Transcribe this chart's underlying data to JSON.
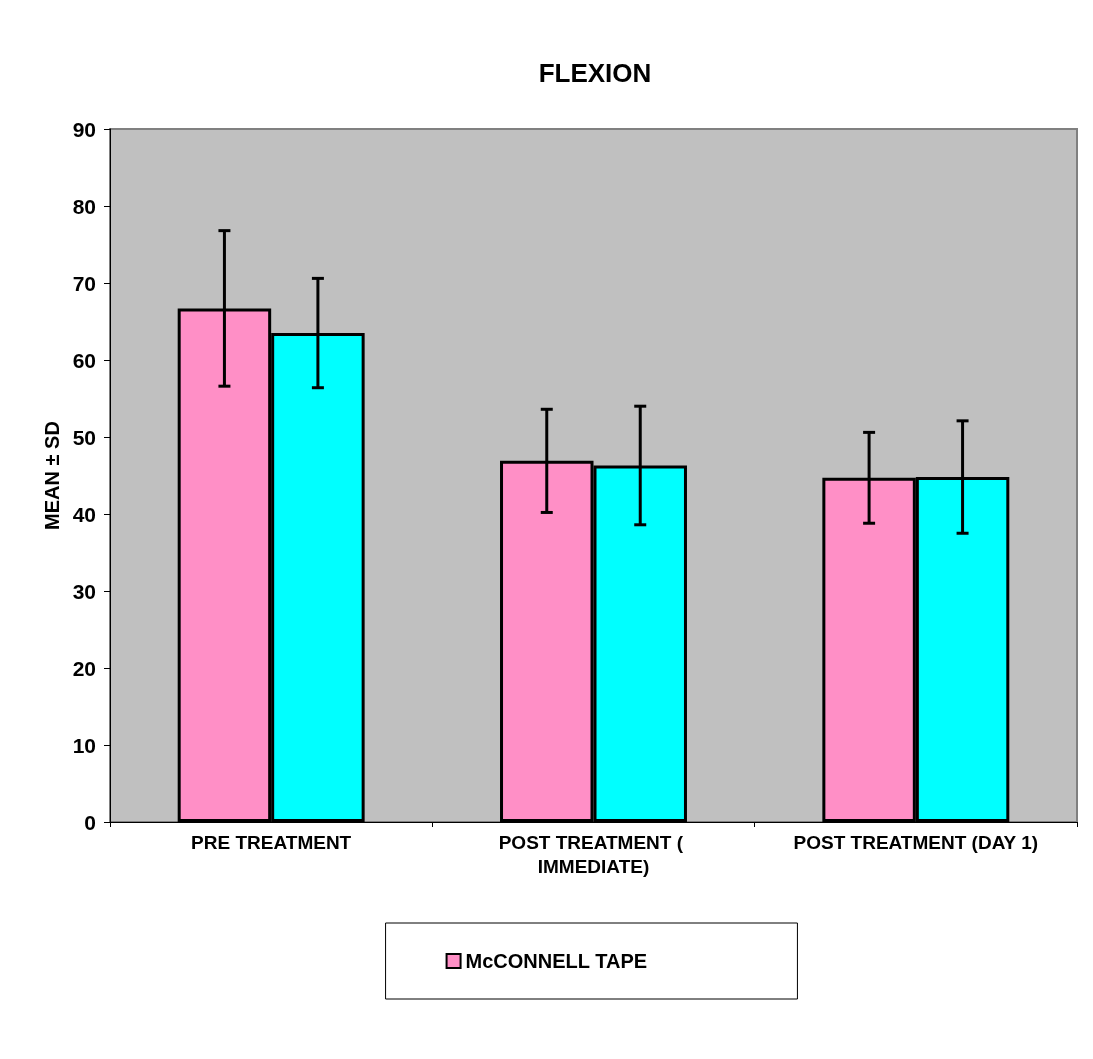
{
  "chart_data": {
    "type": "bar",
    "title": "FLEXION",
    "ylabel": "MEAN ± SD",
    "categories": [
      "PRE TREATMENT",
      "POST TREATMENT ( IMMEDIATE)",
      "POST TREATMENT (DAY 1)"
    ],
    "series": [
      {
        "name": "McCONNELL TAPE",
        "color": "#ff8fc6",
        "values": [
          66.7,
          46.9,
          44.7
        ],
        "errors": [
          10.1,
          6.7,
          5.9
        ]
      },
      {
        "color": "#00ffff",
        "values": [
          63.5,
          46.3,
          44.8
        ],
        "errors": [
          7.1,
          7.7,
          7.3
        ]
      }
    ],
    "ylim": [
      0,
      90
    ],
    "yticks": [
      0,
      10,
      20,
      30,
      40,
      50,
      60,
      70,
      80,
      90
    ],
    "grid": false,
    "legend": "bottom"
  }
}
